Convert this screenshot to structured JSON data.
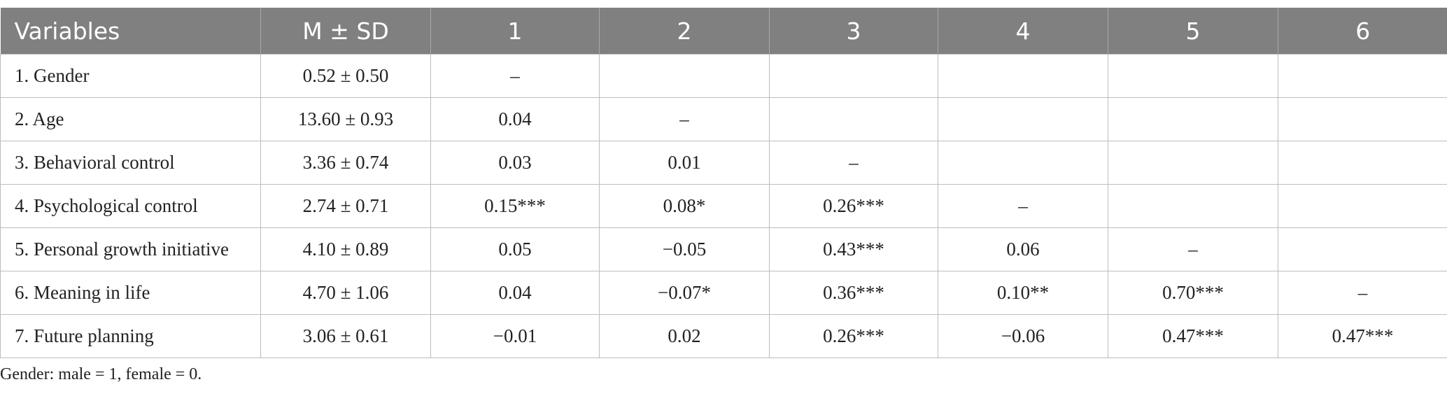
{
  "table": {
    "header": [
      "Variables",
      "M ± SD",
      "1",
      "2",
      "3",
      "4",
      "5",
      "6"
    ],
    "rows": [
      [
        "1. Gender",
        "0.52 ± 0.50",
        "–"
      ],
      [
        "2. Age",
        "13.60 ± 0.93",
        "0.04",
        "–"
      ],
      [
        "3. Behavioral control",
        "3.36 ± 0.74",
        "0.03",
        "0.01",
        "–"
      ],
      [
        "4. Psychological control",
        "2.74 ± 0.71",
        "0.15***",
        "0.08*",
        "0.26***",
        "–"
      ],
      [
        "5. Personal growth initiative",
        "4.10 ± 0.89",
        "0.05",
        "−0.05",
        "0.43***",
        "0.06",
        "–"
      ],
      [
        "6. Meaning in life",
        "4.70 ± 1.06",
        "0.04",
        "−0.07*",
        "0.36***",
        "0.10**",
        "0.70***",
        "–"
      ],
      [
        "7. Future planning",
        "3.06 ± 0.61",
        "−0.01",
        "0.02",
        "0.26***",
        "−0.06",
        "0.47***",
        "0.47***"
      ]
    ],
    "footnote": "Gender: male = 1, female = 0."
  }
}
